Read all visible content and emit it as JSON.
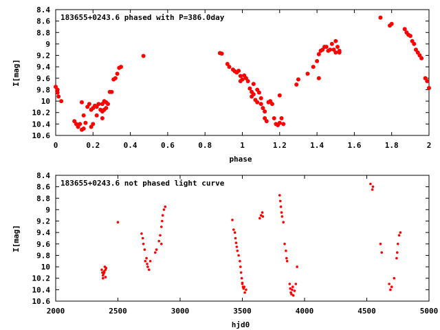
{
  "chart_data": [
    {
      "type": "scatter",
      "title": "183655+0243.6 phased with P=386.0day",
      "xlabel": "phase",
      "ylabel": "I[mag]",
      "xlim": [
        0,
        2
      ],
      "ylim": [
        10.6,
        8.4
      ],
      "y_inverted": true,
      "grid": false,
      "point_color": "#ff0000",
      "xticks": [
        "0",
        "0.2",
        "0.4",
        "0.6",
        "0.8",
        "1",
        "1.2",
        "1.4",
        "1.6",
        "1.8",
        "2"
      ],
      "yticks": [
        "8.4",
        "8.6",
        "8.8",
        "9",
        "9.2",
        "9.4",
        "9.6",
        "9.8",
        "10",
        "10.2",
        "10.4",
        "10.6"
      ],
      "points": [
        [
          0.0,
          9.75
        ],
        [
          0.01,
          9.85
        ],
        [
          0.015,
          9.92
        ],
        [
          0.01,
          9.8
        ],
        [
          0.03,
          10.0
        ],
        [
          0.1,
          10.35
        ],
        [
          0.11,
          10.4
        ],
        [
          0.12,
          10.45
        ],
        [
          0.13,
          10.4
        ],
        [
          0.14,
          10.5
        ],
        [
          0.15,
          10.48
        ],
        [
          0.16,
          10.38
        ],
        [
          0.15,
          10.25
        ],
        [
          0.14,
          10.02
        ],
        [
          0.17,
          10.1
        ],
        [
          0.18,
          10.05
        ],
        [
          0.19,
          10.15
        ],
        [
          0.19,
          10.45
        ],
        [
          0.2,
          10.4
        ],
        [
          0.21,
          10.08
        ],
        [
          0.2,
          10.12
        ],
        [
          0.22,
          10.25
        ],
        [
          0.22,
          10.1
        ],
        [
          0.23,
          10.05
        ],
        [
          0.24,
          10.15
        ],
        [
          0.25,
          10.3
        ],
        [
          0.25,
          10.18
        ],
        [
          0.26,
          10.15
        ],
        [
          0.25,
          10.05
        ],
        [
          0.26,
          10.0
        ],
        [
          0.27,
          10.12
        ],
        [
          0.27,
          10.02
        ],
        [
          0.28,
          10.05
        ],
        [
          0.29,
          9.84
        ],
        [
          0.3,
          9.84
        ],
        [
          0.31,
          9.62
        ],
        [
          0.32,
          9.6
        ],
        [
          0.33,
          9.52
        ],
        [
          0.34,
          9.42
        ],
        [
          0.35,
          9.4
        ],
        [
          0.47,
          9.21
        ],
        [
          0.88,
          9.16
        ],
        [
          0.89,
          9.17
        ],
        [
          0.92,
          9.35
        ],
        [
          0.93,
          9.4
        ],
        [
          0.95,
          9.45
        ],
        [
          0.96,
          9.48
        ],
        [
          0.97,
          9.5
        ],
        [
          0.98,
          9.47
        ],
        [
          0.99,
          9.56
        ],
        [
          1.0,
          9.62
        ],
        [
          0.99,
          9.65
        ],
        [
          1.01,
          9.55
        ],
        [
          1.02,
          9.6
        ],
        [
          1.03,
          9.65
        ],
        [
          1.04,
          9.78
        ],
        [
          1.05,
          9.84
        ],
        [
          1.05,
          9.92
        ],
        [
          1.06,
          9.88
        ],
        [
          1.07,
          9.98
        ],
        [
          1.08,
          10.02
        ],
        [
          1.09,
          9.85
        ],
        [
          1.1,
          10.05
        ],
        [
          1.1,
          9.95
        ],
        [
          1.11,
          10.12
        ],
        [
          1.12,
          10.18
        ],
        [
          1.12,
          10.3
        ],
        [
          1.13,
          10.35
        ],
        [
          1.14,
          10.02
        ],
        [
          1.15,
          10.0
        ],
        [
          1.16,
          10.05
        ],
        [
          1.17,
          10.3
        ],
        [
          1.18,
          10.4
        ],
        [
          1.19,
          10.42
        ],
        [
          1.2,
          10.38
        ],
        [
          1.21,
          10.3
        ],
        [
          1.2,
          9.9
        ],
        [
          1.22,
          10.4
        ],
        [
          1.08,
          9.8
        ],
        [
          1.06,
          9.7
        ],
        [
          1.29,
          9.71
        ],
        [
          1.3,
          9.62
        ],
        [
          1.35,
          9.52
        ],
        [
          1.38,
          9.4
        ],
        [
          1.4,
          9.3
        ],
        [
          1.41,
          9.18
        ],
        [
          1.41,
          9.6
        ],
        [
          1.42,
          9.12
        ],
        [
          1.43,
          9.1
        ],
        [
          1.44,
          9.05
        ],
        [
          1.45,
          9.05
        ],
        [
          1.46,
          9.12
        ],
        [
          1.47,
          9.1
        ],
        [
          1.48,
          9.0
        ],
        [
          1.49,
          9.1
        ],
        [
          1.5,
          8.95
        ],
        [
          1.5,
          9.15
        ],
        [
          1.51,
          9.05
        ],
        [
          1.52,
          9.15
        ],
        [
          1.52,
          9.12
        ],
        [
          1.74,
          8.54
        ],
        [
          1.79,
          8.68
        ],
        [
          1.8,
          8.65
        ],
        [
          1.87,
          8.74
        ],
        [
          1.88,
          8.8
        ],
        [
          1.89,
          8.84
        ],
        [
          1.9,
          8.86
        ],
        [
          1.91,
          8.95
        ],
        [
          1.92,
          9.0
        ],
        [
          1.93,
          9.1
        ],
        [
          1.94,
          9.15
        ],
        [
          1.95,
          9.2
        ],
        [
          1.96,
          9.25
        ],
        [
          1.98,
          9.6
        ],
        [
          1.99,
          9.65
        ],
        [
          2.0,
          9.77
        ]
      ]
    },
    {
      "type": "scatter",
      "title": "183655+0243.6 not phased light curve",
      "xlabel": "hjd0",
      "ylabel": "I[mag]",
      "xlim": [
        2000,
        5000
      ],
      "ylim": [
        10.6,
        8.4
      ],
      "y_inverted": true,
      "grid": false,
      "point_color": "#ff0000",
      "xticks": [
        "2000",
        "2500",
        "3000",
        "3500",
        "4000",
        "4500",
        "5000"
      ],
      "yticks": [
        "8.4",
        "8.6",
        "8.8",
        "9",
        "9.2",
        "9.4",
        "9.6",
        "9.8",
        "10",
        "10.2",
        "10.4",
        "10.6"
      ],
      "points": [
        [
          2370,
          10.05
        ],
        [
          2375,
          10.1
        ],
        [
          2380,
          10.15
        ],
        [
          2385,
          10.12
        ],
        [
          2390,
          10.08
        ],
        [
          2395,
          10.0
        ],
        [
          2400,
          10.05
        ],
        [
          2400,
          10.18
        ],
        [
          2380,
          10.2
        ],
        [
          2390,
          10.1
        ],
        [
          2405,
          10.02
        ],
        [
          2500,
          9.22
        ],
        [
          2690,
          9.42
        ],
        [
          2700,
          9.5
        ],
        [
          2705,
          9.6
        ],
        [
          2715,
          9.7
        ],
        [
          2730,
          9.85
        ],
        [
          2735,
          9.95
        ],
        [
          2740,
          10.0
        ],
        [
          2750,
          10.05
        ],
        [
          2760,
          9.9
        ],
        [
          2720,
          9.9
        ],
        [
          2800,
          9.75
        ],
        [
          2810,
          9.7
        ],
        [
          2830,
          9.55
        ],
        [
          2840,
          9.45
        ],
        [
          2850,
          9.3
        ],
        [
          2855,
          9.2
        ],
        [
          2860,
          9.1
        ],
        [
          2870,
          9.0
        ],
        [
          2880,
          8.95
        ],
        [
          2850,
          9.6
        ],
        [
          3420,
          9.18
        ],
        [
          3430,
          9.35
        ],
        [
          3440,
          9.4
        ],
        [
          3445,
          9.5
        ],
        [
          3450,
          9.58
        ],
        [
          3455,
          9.65
        ],
        [
          3460,
          9.72
        ],
        [
          3470,
          9.8
        ],
        [
          3480,
          9.9
        ],
        [
          3485,
          10.0
        ],
        [
          3490,
          10.1
        ],
        [
          3495,
          10.2
        ],
        [
          3500,
          10.3
        ],
        [
          3505,
          10.35
        ],
        [
          3510,
          10.38
        ],
        [
          3515,
          10.35
        ],
        [
          3520,
          10.45
        ],
        [
          3530,
          10.4
        ],
        [
          3500,
          10.28
        ],
        [
          3640,
          9.15
        ],
        [
          3650,
          9.1
        ],
        [
          3660,
          9.05
        ],
        [
          3665,
          9.12
        ],
        [
          3800,
          8.75
        ],
        [
          3805,
          8.85
        ],
        [
          3810,
          8.95
        ],
        [
          3815,
          9.05
        ],
        [
          3820,
          9.12
        ],
        [
          3830,
          9.22
        ],
        [
          3840,
          9.6
        ],
        [
          3850,
          9.72
        ],
        [
          3855,
          9.85
        ],
        [
          3860,
          9.9
        ],
        [
          3880,
          10.3
        ],
        [
          3885,
          10.38
        ],
        [
          3890,
          10.45
        ],
        [
          3895,
          10.48
        ],
        [
          3900,
          10.4
        ],
        [
          3905,
          10.35
        ],
        [
          3910,
          10.5
        ],
        [
          3920,
          10.42
        ],
        [
          3930,
          10.3
        ],
        [
          3940,
          10.0
        ],
        [
          4530,
          8.55
        ],
        [
          4545,
          8.65
        ],
        [
          4550,
          8.6
        ],
        [
          4610,
          9.6
        ],
        [
          4620,
          9.75
        ],
        [
          4680,
          10.3
        ],
        [
          4690,
          10.4
        ],
        [
          4700,
          10.35
        ],
        [
          4720,
          10.2
        ],
        [
          4740,
          9.85
        ],
        [
          4745,
          9.75
        ],
        [
          4750,
          9.6
        ],
        [
          4760,
          9.45
        ],
        [
          4770,
          9.4
        ]
      ]
    }
  ]
}
